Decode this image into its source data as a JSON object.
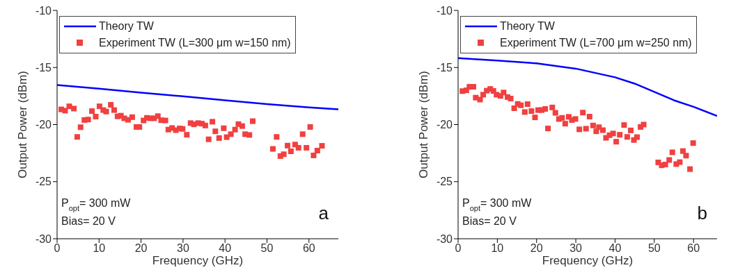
{
  "chart_data": [
    {
      "type": "scatter",
      "xlabel": "Frequency (GHz)",
      "ylabel": "Output Power (dBm)",
      "xlim": [
        0,
        67
      ],
      "ylim": [
        -30,
        -10
      ],
      "xticks": [
        0,
        10,
        20,
        30,
        40,
        50,
        60
      ],
      "yticks": [
        -30,
        -25,
        -20,
        -15,
        -10
      ],
      "grid": false,
      "legend": "top",
      "annotations": [
        "P$_{opt}$= 300 mW",
        "Bias= 20 V",
        "a"
      ],
      "series": [
        {
          "name": "Theory TW",
          "type": "line",
          "color": "#0000ff",
          "marker": "none",
          "line_style": "solid",
          "x": [
            0,
            10,
            20,
            30,
            40,
            50,
            60,
            67
          ],
          "values": [
            -16.54,
            -16.86,
            -17.2,
            -17.53,
            -17.87,
            -18.2,
            -18.5,
            -18.67
          ]
        },
        {
          "name": "Experiment TW (L=300 μm w=150 nm)",
          "color": "#f04040",
          "marker": "square",
          "x": [
            1.0,
            1.9,
            2.9,
            4.0,
            4.8,
            5.6,
            6.5,
            7.4,
            8.3,
            9.2,
            10.1,
            11.0,
            11.7,
            12.8,
            13.6,
            14.4,
            15.2,
            16.0,
            16.9,
            17.9,
            18.9,
            19.6,
            20.6,
            21.4,
            22.3,
            23.1,
            24.0,
            24.8,
            25.8,
            26.5,
            27.4,
            28.3,
            29.2,
            29.9,
            30.9,
            31.8,
            32.6,
            33.6,
            34.5,
            35.3,
            36.1,
            37.0,
            37.7,
            38.6,
            39.7,
            40.4,
            41.4,
            42.4,
            43.2,
            44.1,
            44.8,
            45.8,
            46.6,
            51.4,
            52.3,
            53.2,
            54.0,
            54.9,
            55.7,
            56.7,
            57.5,
            58.5,
            59.4,
            60.3,
            61.1,
            62.0,
            63.1
          ],
          "values": [
            -18.67,
            -18.78,
            -18.4,
            -18.6,
            -21.08,
            -20.23,
            -19.6,
            -19.56,
            -18.82,
            -19.3,
            -18.4,
            -18.73,
            -18.86,
            -18.27,
            -18.73,
            -19.28,
            -19.22,
            -19.45,
            -19.58,
            -19.35,
            -20.21,
            -20.21,
            -19.64,
            -19.41,
            -19.45,
            -19.45,
            -19.26,
            -19.62,
            -19.64,
            -20.44,
            -20.3,
            -20.49,
            -20.34,
            -20.38,
            -20.89,
            -19.87,
            -19.98,
            -19.87,
            -19.92,
            -20.08,
            -21.29,
            -19.75,
            -20.59,
            -21.18,
            -20.32,
            -21.1,
            -20.84,
            -20.44,
            -19.96,
            -20.13,
            -20.84,
            -20.91,
            -19.7,
            -22.13,
            -21.08,
            -22.76,
            -22.6,
            -21.84,
            -22.34,
            -21.75,
            -22.03,
            -20.84,
            -22.03,
            -20.21,
            -22.7,
            -22.28,
            -21.86
          ]
        }
      ]
    },
    {
      "type": "scatter",
      "xlabel": "Frequency (GHz)",
      "ylabel": "Output Power (dBm)",
      "xlim": [
        0,
        66
      ],
      "ylim": [
        -30,
        -10
      ],
      "xticks": [
        0,
        10,
        20,
        30,
        40,
        50,
        60
      ],
      "yticks": [
        -30,
        -25,
        -20,
        -15,
        -10
      ],
      "grid": false,
      "legend": "top",
      "annotations": [
        "P$_{opt}$= 300 mW",
        "Bias= 20 V",
        "b"
      ],
      "series": [
        {
          "name": "Theory TW",
          "type": "line",
          "color": "#0000ff",
          "marker": "none",
          "line_style": "solid",
          "x": [
            0,
            10,
            20,
            30,
            40,
            45,
            50,
            55,
            60,
            66
          ],
          "values": [
            -14.18,
            -14.39,
            -14.64,
            -15.1,
            -15.86,
            -16.41,
            -17.13,
            -17.87,
            -18.44,
            -19.24
          ]
        },
        {
          "name": "Experiment TW (L=700 μm w=250 nm)",
          "color": "#f04040",
          "marker": "square",
          "x": [
            1.1,
            2.1,
            2.9,
            3.9,
            4.5,
            5.6,
            6.4,
            7.3,
            8.2,
            9.0,
            9.8,
            10.8,
            11.6,
            12.6,
            13.4,
            14.3,
            15.2,
            16.0,
            17.0,
            17.7,
            18.7,
            19.6,
            20.4,
            21.3,
            22.2,
            22.9,
            24.0,
            24.8,
            25.7,
            26.5,
            27.3,
            28.2,
            29.0,
            29.9,
            30.9,
            31.8,
            32.6,
            33.5,
            34.4,
            35.2,
            35.9,
            36.9,
            37.7,
            38.6,
            39.5,
            40.3,
            41.2,
            42.3,
            43.1,
            44.0,
            44.8,
            45.6,
            46.5,
            47.3,
            51.0,
            51.9,
            52.8,
            53.8,
            54.6,
            55.6,
            56.5,
            57.3,
            58.1,
            59.1,
            59.9
          ],
          "values": [
            -17.07,
            -17.0,
            -16.69,
            -16.69,
            -17.64,
            -17.81,
            -17.38,
            -17.03,
            -16.88,
            -17.05,
            -17.38,
            -17.49,
            -17.19,
            -17.59,
            -17.72,
            -18.57,
            -18.19,
            -18.31,
            -18.9,
            -18.21,
            -18.82,
            -19.37,
            -18.73,
            -18.73,
            -18.63,
            -20.34,
            -18.5,
            -18.97,
            -19.51,
            -19.41,
            -19.92,
            -19.32,
            -19.6,
            -19.51,
            -20.42,
            -18.95,
            -20.36,
            -19.3,
            -20.08,
            -20.59,
            -20.23,
            -20.49,
            -21.16,
            -20.93,
            -20.78,
            -21.5,
            -20.89,
            -20.04,
            -21.08,
            -20.51,
            -21.35,
            -21.1,
            -20.21,
            -20.0,
            -23.31,
            -23.57,
            -23.5,
            -23.1,
            -22.43,
            -23.46,
            -23.29,
            -22.32,
            -22.72,
            -23.9,
            -21.62
          ]
        }
      ]
    }
  ]
}
